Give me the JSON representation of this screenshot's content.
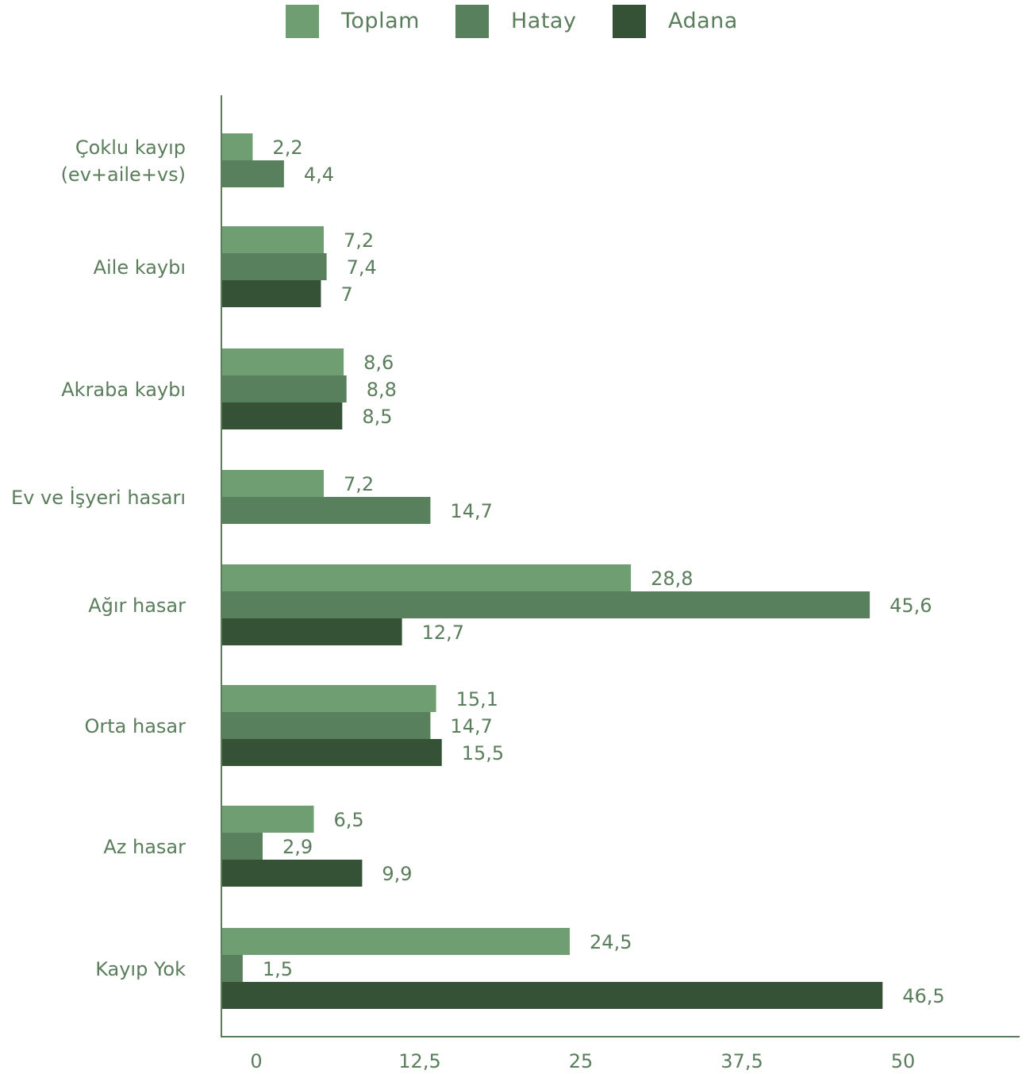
{
  "chart_data": {
    "type": "bar",
    "orientation": "horizontal",
    "categories": [
      [
        "Çoklu kayıp",
        "(ev+aile+vs)"
      ],
      [
        "Aile kaybı"
      ],
      [
        "Akraba kaybı"
      ],
      [
        "Ev ve İşyeri hasarı"
      ],
      [
        "Ağır hasar"
      ],
      [
        "Orta hasar"
      ],
      [
        "Az hasar"
      ],
      [
        "Kayıp Yok"
      ]
    ],
    "series": [
      {
        "name": "Toplam",
        "color": "#6e9e72",
        "values": [
          2.2,
          7.2,
          8.6,
          7.2,
          28.8,
          15.1,
          6.5,
          24.5
        ],
        "labels": [
          "2,2",
          "7,2",
          "8,6",
          "7,2",
          "28,8",
          "15,1",
          "6,5",
          "24,5"
        ]
      },
      {
        "name": "Hatay",
        "color": "#58805c",
        "values": [
          4.4,
          7.4,
          8.8,
          14.7,
          45.6,
          14.7,
          2.9,
          1.5
        ],
        "labels": [
          "4,4",
          "7,4",
          "8,8",
          "14,7",
          "45,6",
          "14,7",
          "2,9",
          "1,5"
        ]
      },
      {
        "name": "Adana",
        "color": "#355237",
        "values": [
          null,
          7,
          8.5,
          null,
          12.7,
          15.5,
          9.9,
          46.5
        ],
        "labels": [
          null,
          "7",
          "8,5",
          null,
          "12,7",
          "15,5",
          "9,9",
          "46,5"
        ]
      }
    ],
    "x_ticks": [
      0,
      12.5,
      25,
      37.5,
      50
    ],
    "x_tick_labels": [
      "0",
      "12,5",
      "25",
      "37,5",
      "50"
    ],
    "xlim": [
      0,
      50
    ],
    "legend_position": "top-center",
    "grid": false,
    "text_color": "#5a7d5c",
    "axis_color": "#5a7d5c"
  }
}
